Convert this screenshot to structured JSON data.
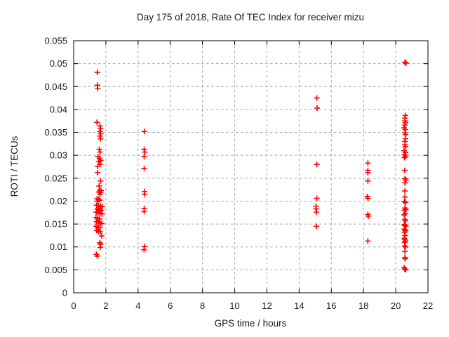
{
  "page": {
    "background": "#ffffff"
  },
  "chart_data": {
    "type": "scatter",
    "title": "Day 175 of 2018, Rate Of TEC Index for receiver mizu",
    "xlabel": "GPS time / hours",
    "ylabel": "ROTI / TECUs",
    "xlim": [
      0,
      22
    ],
    "ylim": [
      0,
      0.055
    ],
    "xticks": [
      0,
      2,
      4,
      6,
      8,
      10,
      12,
      14,
      16,
      18,
      20,
      22
    ],
    "xtick_labels": [
      "0",
      "2",
      "4",
      "6",
      "8",
      "10",
      "12",
      "14",
      "16",
      "18",
      "20",
      "22"
    ],
    "yticks": [
      0,
      0.005,
      0.01,
      0.015,
      0.02,
      0.025,
      0.03,
      0.035,
      0.04,
      0.045,
      0.05,
      0.055
    ],
    "ytick_labels": [
      "0",
      "0.005",
      "0.01",
      "0.015",
      "0.02",
      "0.025",
      "0.03",
      "0.035",
      "0.04",
      "0.045",
      "0.05",
      "0.055"
    ],
    "grid": true,
    "grid_style": "dashed",
    "grid_color": "#a6a6a6",
    "border_color": "#000000",
    "legend": "none",
    "marker": "plus",
    "marker_color": "#ff0000",
    "series": [
      {
        "name": "ROTI",
        "points": [
          [
            1.47,
            0.0481
          ],
          [
            1.47,
            0.0453
          ],
          [
            1.49,
            0.0446
          ],
          [
            1.45,
            0.0372
          ],
          [
            1.63,
            0.0364
          ],
          [
            1.67,
            0.0358
          ],
          [
            1.63,
            0.0352
          ],
          [
            1.68,
            0.0347
          ],
          [
            1.63,
            0.0342
          ],
          [
            1.67,
            0.0336
          ],
          [
            1.59,
            0.0313
          ],
          [
            1.64,
            0.0307
          ],
          [
            1.51,
            0.0297
          ],
          [
            1.61,
            0.0293
          ],
          [
            1.68,
            0.0289
          ],
          [
            1.56,
            0.0286
          ],
          [
            1.64,
            0.028
          ],
          [
            1.49,
            0.0276
          ],
          [
            1.49,
            0.0262
          ],
          [
            1.67,
            0.0244
          ],
          [
            1.58,
            0.0233
          ],
          [
            1.61,
            0.0224
          ],
          [
            1.7,
            0.0223
          ],
          [
            1.57,
            0.022
          ],
          [
            1.67,
            0.0219
          ],
          [
            1.63,
            0.0215
          ],
          [
            1.45,
            0.0205
          ],
          [
            1.54,
            0.0204
          ],
          [
            1.63,
            0.0202
          ],
          [
            1.48,
            0.02
          ],
          [
            1.42,
            0.0191
          ],
          [
            1.55,
            0.019
          ],
          [
            1.68,
            0.0189
          ],
          [
            1.78,
            0.0188
          ],
          [
            1.47,
            0.0183
          ],
          [
            1.6,
            0.0181
          ],
          [
            1.72,
            0.018
          ],
          [
            1.4,
            0.0176
          ],
          [
            1.52,
            0.0175
          ],
          [
            1.64,
            0.0173
          ],
          [
            1.76,
            0.0172
          ],
          [
            1.38,
            0.0164
          ],
          [
            1.48,
            0.0163
          ],
          [
            1.6,
            0.0161
          ],
          [
            1.43,
            0.0155
          ],
          [
            1.55,
            0.0153
          ],
          [
            1.66,
            0.0152
          ],
          [
            1.75,
            0.0151
          ],
          [
            1.39,
            0.0145
          ],
          [
            1.51,
            0.0143
          ],
          [
            1.63,
            0.0142
          ],
          [
            1.43,
            0.0136
          ],
          [
            1.55,
            0.0134
          ],
          [
            1.66,
            0.0133
          ],
          [
            1.74,
            0.0124
          ],
          [
            1.62,
            0.0109
          ],
          [
            1.68,
            0.0106
          ],
          [
            1.65,
            0.0099
          ],
          [
            1.41,
            0.0084
          ],
          [
            1.47,
            0.008
          ],
          [
            4.39,
            0.0352
          ],
          [
            4.38,
            0.0313
          ],
          [
            4.42,
            0.0307
          ],
          [
            4.38,
            0.0297
          ],
          [
            4.38,
            0.0271
          ],
          [
            4.4,
            0.0221
          ],
          [
            4.4,
            0.0215
          ],
          [
            4.38,
            0.0184
          ],
          [
            4.38,
            0.0177
          ],
          [
            4.4,
            0.0101
          ],
          [
            4.37,
            0.0094
          ],
          [
            15.1,
            0.0425
          ],
          [
            15.12,
            0.0403
          ],
          [
            15.1,
            0.028
          ],
          [
            15.1,
            0.0206
          ],
          [
            15.05,
            0.0189
          ],
          [
            15.05,
            0.0183
          ],
          [
            15.08,
            0.0176
          ],
          [
            15.08,
            0.0145
          ],
          [
            18.27,
            0.0283
          ],
          [
            18.27,
            0.0267
          ],
          [
            18.27,
            0.0262
          ],
          [
            18.27,
            0.0244
          ],
          [
            18.23,
            0.021
          ],
          [
            18.28,
            0.0206
          ],
          [
            18.27,
            0.0171
          ],
          [
            18.3,
            0.0167
          ],
          [
            18.27,
            0.0113
          ],
          [
            20.57,
            0.0503
          ],
          [
            20.64,
            0.0501
          ],
          [
            20.6,
            0.0387
          ],
          [
            20.57,
            0.0381
          ],
          [
            20.57,
            0.0375
          ],
          [
            20.6,
            0.0371
          ],
          [
            20.57,
            0.0366
          ],
          [
            20.52,
            0.036
          ],
          [
            20.6,
            0.0356
          ],
          [
            20.57,
            0.0349
          ],
          [
            20.61,
            0.0345
          ],
          [
            20.6,
            0.0336
          ],
          [
            20.57,
            0.033
          ],
          [
            20.57,
            0.0323
          ],
          [
            20.6,
            0.0319
          ],
          [
            20.52,
            0.031
          ],
          [
            20.6,
            0.0306
          ],
          [
            20.54,
            0.0301
          ],
          [
            20.61,
            0.0298
          ],
          [
            20.54,
            0.0295
          ],
          [
            20.56,
            0.0267
          ],
          [
            20.57,
            0.0249
          ],
          [
            20.63,
            0.0246
          ],
          [
            20.57,
            0.024
          ],
          [
            20.57,
            0.0222
          ],
          [
            20.57,
            0.0209
          ],
          [
            20.53,
            0.0199
          ],
          [
            20.61,
            0.0197
          ],
          [
            20.57,
            0.0185
          ],
          [
            20.63,
            0.0182
          ],
          [
            20.54,
            0.018
          ],
          [
            20.59,
            0.0173
          ],
          [
            20.52,
            0.017
          ],
          [
            20.56,
            0.016
          ],
          [
            20.6,
            0.0157
          ],
          [
            20.53,
            0.0149
          ],
          [
            20.57,
            0.0147
          ],
          [
            20.62,
            0.0145
          ],
          [
            20.53,
            0.0139
          ],
          [
            20.57,
            0.0137
          ],
          [
            20.61,
            0.0135
          ],
          [
            20.55,
            0.0132
          ],
          [
            20.58,
            0.0125
          ],
          [
            20.53,
            0.0119
          ],
          [
            20.57,
            0.0116
          ],
          [
            20.61,
            0.0113
          ],
          [
            20.55,
            0.011
          ],
          [
            20.55,
            0.0102
          ],
          [
            20.6,
            0.01
          ],
          [
            20.57,
            0.009
          ],
          [
            20.57,
            0.0077
          ],
          [
            20.59,
            0.0074
          ],
          [
            20.52,
            0.0055
          ],
          [
            20.56,
            0.0052
          ],
          [
            20.62,
            0.005
          ]
        ]
      }
    ]
  }
}
